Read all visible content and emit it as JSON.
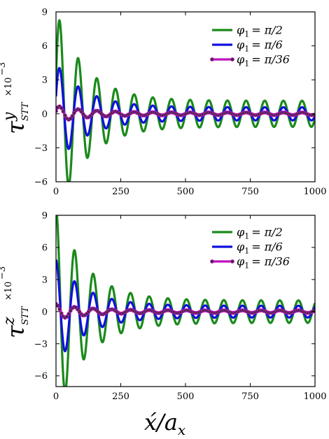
{
  "chart_data": [
    {
      "type": "line",
      "panel": "top",
      "ylabel": "τ^y_STT ×10^-3",
      "ylabel_parts": {
        "tau": "τ",
        "sup": "y",
        "sub": "STT",
        "factor": "×10",
        "exp": "−3"
      },
      "xlim": [
        0,
        1000
      ],
      "ylim": [
        -6,
        9
      ],
      "xticks": [
        0,
        250,
        500,
        750,
        1000
      ],
      "xtick_labels": [
        "0",
        "250",
        "500",
        "750",
        "1000"
      ],
      "yticks": [
        9,
        6,
        3,
        0,
        -3,
        -6
      ],
      "ytick_labels": [
        "9",
        "6",
        "3",
        "0",
        "−3",
        "−6"
      ],
      "legend_position": "top-right",
      "series": [
        {
          "name": "φ1 = π/2",
          "color": "#1a8a1a",
          "marker": "none",
          "amplitude": 8.0,
          "decay": 0.0088,
          "floor": 1.15,
          "period": 72,
          "phase": 14,
          "offset": 0.0
        },
        {
          "name": "φ1 = π/6",
          "color": "#1010e0",
          "marker": "none",
          "amplitude": 3.9,
          "decay": 0.0088,
          "floor": 0.58,
          "period": 72,
          "phase": 14,
          "offset": 0.0
        },
        {
          "name": "φ1 = π/36",
          "color": "#c010c0",
          "marker": "circle",
          "amplitude": 0.6,
          "decay": 0.0085,
          "floor": 0.12,
          "period": 72,
          "phase": 14,
          "offset": 0.0
        }
      ],
      "key_points": [
        {
          "series": "φ1 = π/2",
          "x": 14,
          "y": 8.0
        },
        {
          "series": "φ1 = π/2",
          "x": 48,
          "y": -5.0
        },
        {
          "series": "φ1 = π/6",
          "x": 14,
          "y": 3.9
        },
        {
          "series": "φ1 = π/6",
          "x": 48,
          "y": -2.6
        }
      ]
    },
    {
      "type": "line",
      "panel": "bottom",
      "ylabel": "τ^z_STT ×10^-3",
      "ylabel_parts": {
        "tau": "τ",
        "sup": "z",
        "sub": "STT",
        "factor": "×10",
        "exp": "−3"
      },
      "xlabel": "x́/a_x",
      "xlabel_parts": {
        "main": "x́",
        "slash": "/a",
        "sub": "x"
      },
      "xlim": [
        0,
        1000
      ],
      "ylim": [
        -7,
        9
      ],
      "xticks": [
        0,
        250,
        500,
        750,
        1000
      ],
      "xtick_labels": [
        "0",
        "250",
        "500",
        "750",
        "1000"
      ],
      "yticks": [
        9,
        6,
        3,
        0,
        -3,
        -6
      ],
      "ytick_labels": [
        "9",
        "6",
        "3",
        "0",
        "−3",
        "−6"
      ],
      "legend_position": "top-right",
      "series": [
        {
          "name": "φ1 = π/2",
          "color": "#1a8a1a",
          "marker": "none",
          "amplitude": 8.8,
          "decay": 0.0088,
          "floor": 1.05,
          "period": 72,
          "phase": 0,
          "offset": 0.0
        },
        {
          "name": "φ1 = π/6",
          "color": "#1010e0",
          "marker": "none",
          "amplitude": 4.3,
          "decay": 0.0088,
          "floor": 0.55,
          "period": 72,
          "phase": 0,
          "offset": 0.0
        },
        {
          "name": "φ1 = π/36",
          "color": "#c010c0",
          "marker": "circle",
          "amplitude": 0.6,
          "decay": 0.0085,
          "floor": 0.12,
          "period": 72,
          "phase": 0,
          "offset": 0.0
        }
      ],
      "key_points": [
        {
          "series": "φ1 = π/2",
          "x": 0,
          "y": 8.8
        },
        {
          "series": "φ1 = π/2",
          "x": 30,
          "y": -6.7
        },
        {
          "series": "φ1 = π/6",
          "x": 0,
          "y": 4.3
        },
        {
          "series": "φ1 = π/6",
          "x": 30,
          "y": -3.3
        }
      ]
    }
  ],
  "legend": {
    "phi": "φ",
    "sub": "1",
    "items": [
      "= π/2",
      "= π/6",
      "= π/36"
    ]
  }
}
